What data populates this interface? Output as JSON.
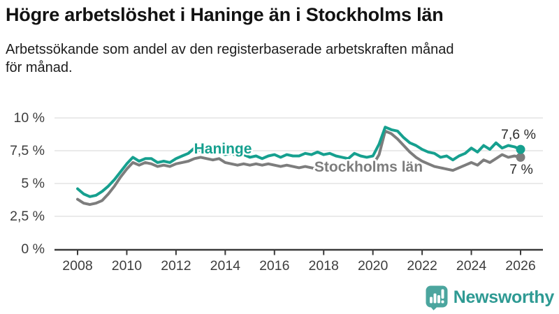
{
  "footer": {
    "brand": "Newsworthy"
  },
  "colors": {
    "haninge": "#16a08f",
    "stockholms_lan": "#7d7d7d",
    "axis": "#3a3a3a",
    "grid": "#dedede",
    "value_label": "#2b2b2b",
    "brand_square": "#4ba59e",
    "brand_text": "#2e9a93",
    "background": "#ffffff"
  },
  "chart_data": {
    "type": "line",
    "title": "Högre arbetslöshet i Haninge än i Stockholms län",
    "subtitle": "Arbetssökande som andel av den registerbaserade arbetskraften månad\nför månad.",
    "unit": "%",
    "grid": true,
    "xlim": [
      2008,
      2026
    ],
    "ylim": [
      0,
      10.5
    ],
    "x_start": 2008,
    "x_step": 0.25,
    "x_ticks": [
      2008,
      2010,
      2012,
      2014,
      2016,
      2018,
      2020,
      2022,
      2024,
      2026
    ],
    "y_ticks": {
      "values": [
        0,
        2.5,
        5,
        7.5,
        10
      ],
      "labels": [
        "0 %",
        "2,5 %",
        "5 %",
        "7,5 %",
        "10 %"
      ]
    },
    "series": [
      {
        "name": "Stockholms län",
        "color": "#7d7d7d",
        "end_label": "7 %",
        "last_value": 7.0,
        "label_at": [
          2017.62,
          5.9
        ],
        "values": [
          3.8,
          3.5,
          3.4,
          3.5,
          3.7,
          4.2,
          4.8,
          5.5,
          6.1,
          6.6,
          6.4,
          6.6,
          6.5,
          6.3,
          6.4,
          6.3,
          6.5,
          6.6,
          6.7,
          6.9,
          7.0,
          6.9,
          6.8,
          6.9,
          6.6,
          6.5,
          6.4,
          6.5,
          6.4,
          6.5,
          6.4,
          6.5,
          6.4,
          6.3,
          6.4,
          6.3,
          6.2,
          6.3,
          6.2,
          6.1,
          6.2,
          6.1,
          6.2,
          6.1,
          6.1,
          6.2,
          6.3,
          6.2,
          6.4,
          7.2,
          9.0,
          8.8,
          8.4,
          7.9,
          7.4,
          7.0,
          6.7,
          6.5,
          6.3,
          6.2,
          6.1,
          6.0,
          6.2,
          6.4,
          6.6,
          6.4,
          6.8,
          6.6,
          6.9,
          7.2,
          7.0,
          7.1,
          7.0
        ]
      },
      {
        "name": "Haninge",
        "color": "#16a08f",
        "end_label": "7,6 %",
        "last_value": 7.6,
        "label_at": [
          2012.73,
          7.3
        ],
        "values": [
          4.6,
          4.2,
          4.0,
          4.1,
          4.4,
          4.8,
          5.3,
          5.9,
          6.5,
          7.0,
          6.7,
          6.9,
          6.9,
          6.6,
          6.7,
          6.6,
          6.9,
          7.1,
          7.3,
          7.7,
          7.5,
          7.4,
          7.3,
          7.4,
          7.2,
          7.3,
          7.1,
          7.2,
          7.0,
          7.1,
          6.9,
          7.1,
          7.2,
          7.0,
          7.2,
          7.1,
          7.1,
          7.3,
          7.2,
          7.4,
          7.2,
          7.3,
          7.1,
          7.0,
          6.9,
          7.3,
          7.1,
          7.0,
          7.1,
          8.0,
          9.3,
          9.1,
          9.0,
          8.5,
          8.1,
          7.9,
          7.6,
          7.4,
          7.3,
          7.0,
          7.1,
          6.8,
          7.1,
          7.3,
          7.7,
          7.4,
          7.9,
          7.6,
          8.1,
          7.7,
          7.9,
          7.8,
          7.6
        ]
      }
    ]
  }
}
